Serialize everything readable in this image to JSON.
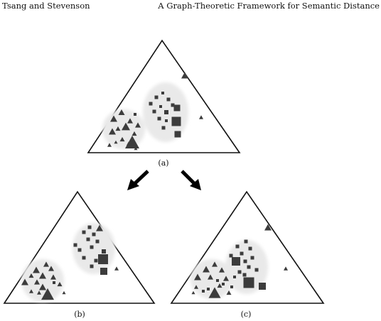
{
  "header": {
    "left": "Tsang and Stevenson",
    "right": "A Graph-Theoretic Framework for Semantic Distance"
  },
  "figure": {
    "colors": {
      "marker": "#3c3c3c",
      "outline": "#111111",
      "halo": "#e9e9e9"
    },
    "panels": [
      {
        "id": "a",
        "caption": "(a)"
      },
      {
        "id": "b",
        "caption": "(b)"
      },
      {
        "id": "c",
        "caption": "(c)"
      }
    ],
    "arrows": [
      {
        "from": "a",
        "to": "b",
        "icon": "arrow-down-left-icon"
      },
      {
        "from": "a",
        "to": "c",
        "icon": "arrow-down-right-icon"
      }
    ]
  }
}
